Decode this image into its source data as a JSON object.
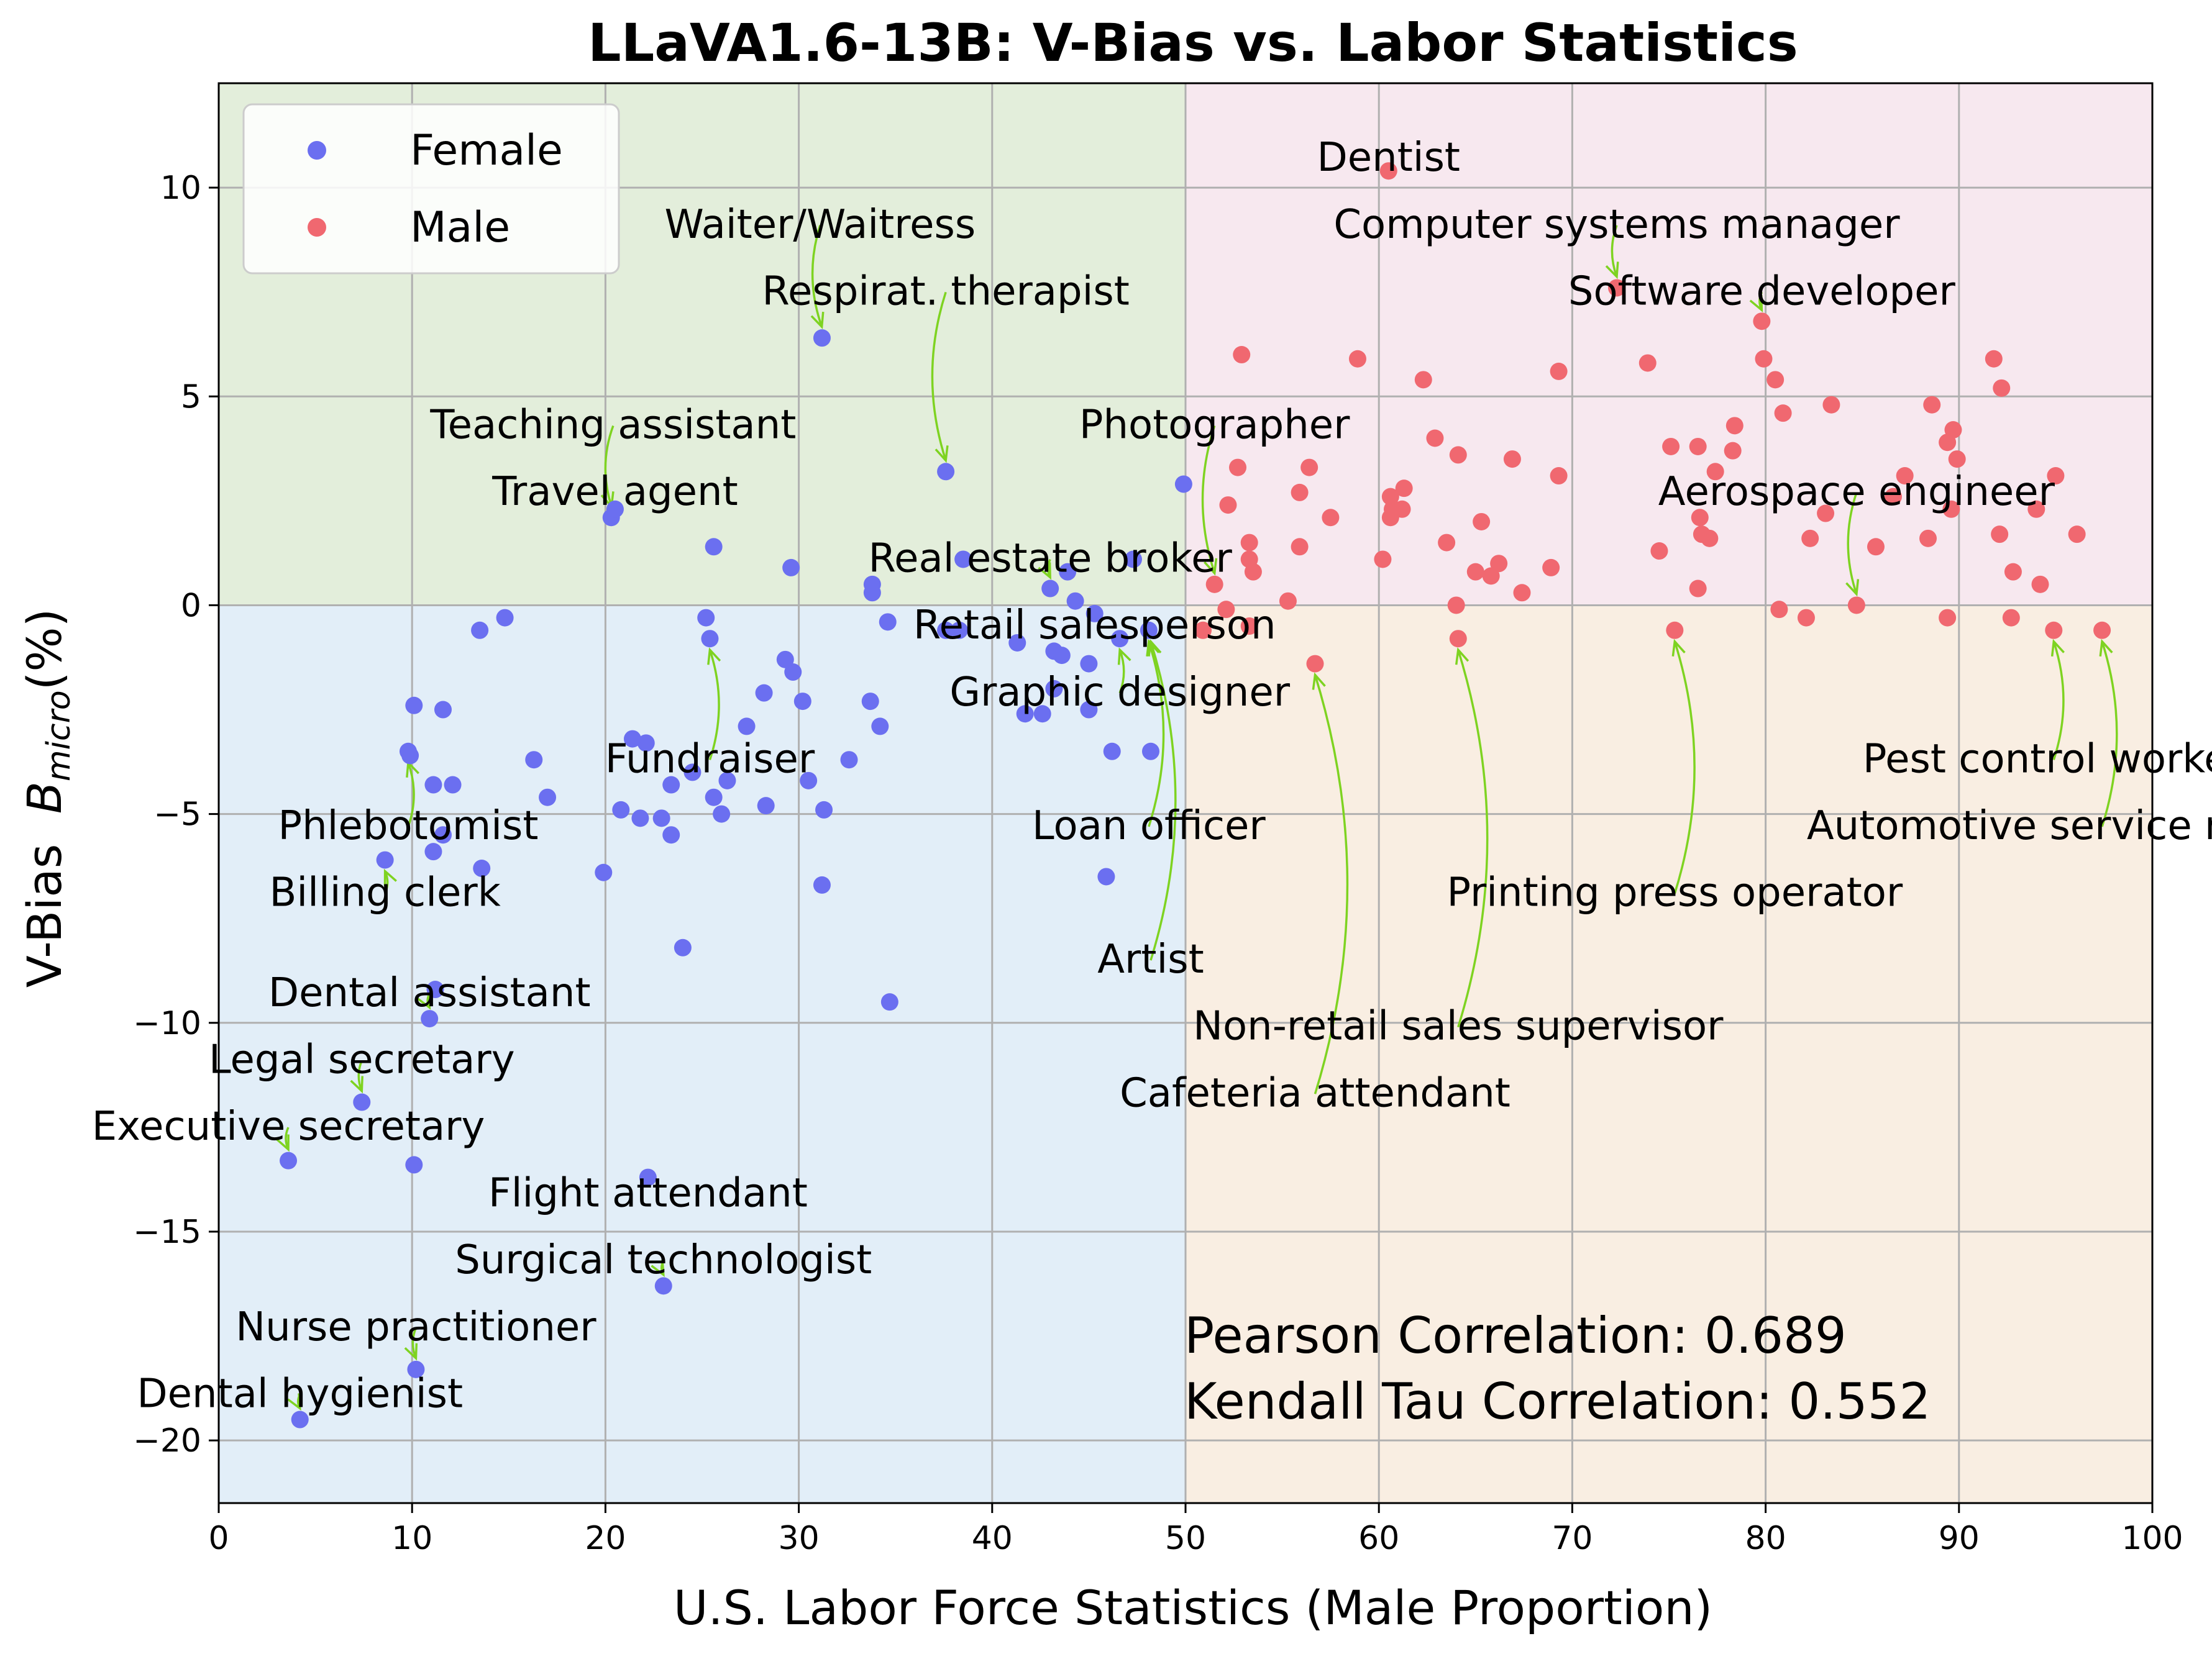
{
  "chart_data": {
    "type": "scatter",
    "title": "LLaVA1.6-13B: V-Bias vs. Labor Statistics",
    "xlabel": "U.S. Labor Force Statistics (Male Proportion)",
    "ylabel_prefix": "V-Bias  ",
    "ylabel_symbol": "B",
    "ylabel_subscript": "micro",
    "ylabel_suffix": "(%)",
    "xlim": [
      0,
      100
    ],
    "ylim": [
      -21.5,
      12.5
    ],
    "xticks": [
      0,
      10,
      20,
      30,
      40,
      50,
      60,
      70,
      80,
      90,
      100
    ],
    "yticks": [
      -20,
      -15,
      -10,
      -5,
      0,
      5,
      10
    ],
    "ytick_labels": [
      "−20",
      "−15",
      "−10",
      "−5",
      "0",
      "5",
      "10"
    ],
    "grid": true,
    "legend_position": "top-left",
    "quadrant_colors": {
      "top-left": "#e3eedb",
      "top-right": "#f7e8ef",
      "bottom-left": "#e2eef8",
      "bottom-right": "#f9eee2"
    },
    "annotation_arrow_color": "#7ed321",
    "series": [
      {
        "name": "Female",
        "color": "#6b6ff0",
        "points": [
          [
            4.2,
            -19.5
          ],
          [
            10.2,
            -18.3
          ],
          [
            23,
            -16.3
          ],
          [
            22.2,
            -13.7
          ],
          [
            10.1,
            -13.4
          ],
          [
            3.6,
            -13.3
          ],
          [
            7.4,
            -11.9
          ],
          [
            10.9,
            -9.9
          ],
          [
            11.2,
            -9.2
          ],
          [
            34.7,
            -9.5
          ],
          [
            24,
            -8.2
          ],
          [
            31.2,
            -6.7
          ],
          [
            45.9,
            -6.5
          ],
          [
            8.6,
            -6.1
          ],
          [
            19.9,
            -6.4
          ],
          [
            13.6,
            -6.3
          ],
          [
            11.1,
            -5.9
          ],
          [
            11.6,
            -5.5
          ],
          [
            23.4,
            -5.5
          ],
          [
            21.8,
            -5.1
          ],
          [
            22.9,
            -5.1
          ],
          [
            20.8,
            -4.9
          ],
          [
            26,
            -5
          ],
          [
            28.3,
            -4.8
          ],
          [
            31.3,
            -4.9
          ],
          [
            17,
            -4.6
          ],
          [
            25.6,
            -4.6
          ],
          [
            11.1,
            -4.3
          ],
          [
            12.1,
            -4.3
          ],
          [
            23.4,
            -4.3
          ],
          [
            26.3,
            -4.2
          ],
          [
            30.5,
            -4.2
          ],
          [
            24.5,
            -4
          ],
          [
            16.3,
            -3.7
          ],
          [
            9.9,
            -3.6
          ],
          [
            32.6,
            -3.7
          ],
          [
            46.2,
            -3.5
          ],
          [
            48.2,
            -3.5
          ],
          [
            22.1,
            -3.3
          ],
          [
            21.4,
            -3.2
          ],
          [
            9.8,
            -3.5
          ],
          [
            27.3,
            -2.9
          ],
          [
            34.2,
            -2.9
          ],
          [
            41.7,
            -2.6
          ],
          [
            42.6,
            -2.6
          ],
          [
            45,
            -2.5
          ],
          [
            10.1,
            -2.4
          ],
          [
            11.6,
            -2.5
          ],
          [
            30.2,
            -2.3
          ],
          [
            33.7,
            -2.3
          ],
          [
            28.2,
            -2.1
          ],
          [
            43.2,
            -2
          ],
          [
            29.7,
            -1.6
          ],
          [
            29.3,
            -1.3
          ],
          [
            45,
            -1.4
          ],
          [
            43.2,
            -1.1
          ],
          [
            43.6,
            -1.2
          ],
          [
            25.4,
            -0.8
          ],
          [
            41.3,
            -0.9
          ],
          [
            46.6,
            -0.8
          ],
          [
            13.5,
            -0.6
          ],
          [
            37.6,
            -0.6
          ],
          [
            38.3,
            -0.6
          ],
          [
            14.8,
            -0.3
          ],
          [
            25.2,
            -0.3
          ],
          [
            34.6,
            -0.4
          ],
          [
            45.3,
            -0.2
          ],
          [
            48.1,
            -0.6
          ],
          [
            44.3,
            0.1
          ],
          [
            43,
            0.4
          ],
          [
            33.8,
            0.3
          ],
          [
            33.8,
            0.5
          ],
          [
            29.6,
            0.9
          ],
          [
            43.9,
            0.8
          ],
          [
            38.5,
            1.1
          ],
          [
            47.3,
            1.1
          ],
          [
            25.6,
            1.4
          ],
          [
            20.3,
            2.1
          ],
          [
            20.5,
            2.3
          ],
          [
            37.6,
            3.2
          ],
          [
            31.2,
            6.4
          ],
          [
            49.9,
            2.9
          ]
        ]
      },
      {
        "name": "Male",
        "color": "#f06870",
        "points": [
          [
            60.5,
            10.4
          ],
          [
            72.3,
            7.6
          ],
          [
            79.8,
            6.8
          ],
          [
            52.9,
            6
          ],
          [
            58.9,
            5.9
          ],
          [
            79.9,
            5.9
          ],
          [
            73.9,
            5.8
          ],
          [
            91.8,
            5.9
          ],
          [
            62.3,
            5.4
          ],
          [
            69.3,
            5.6
          ],
          [
            80.5,
            5.4
          ],
          [
            92.2,
            5.2
          ],
          [
            83.4,
            4.8
          ],
          [
            88.6,
            4.8
          ],
          [
            80.9,
            4.6
          ],
          [
            78.4,
            4.3
          ],
          [
            89.7,
            4.2
          ],
          [
            62.9,
            4
          ],
          [
            75.1,
            3.8
          ],
          [
            89.4,
            3.9
          ],
          [
            64.1,
            3.6
          ],
          [
            76.5,
            3.8
          ],
          [
            78.3,
            3.7
          ],
          [
            66.9,
            3.5
          ],
          [
            89.9,
            3.5
          ],
          [
            52.7,
            3.3
          ],
          [
            56.4,
            3.3
          ],
          [
            77.4,
            3.2
          ],
          [
            87.2,
            3.1
          ],
          [
            95,
            3.1
          ],
          [
            69.3,
            3.1
          ],
          [
            61.3,
            2.8
          ],
          [
            55.9,
            2.7
          ],
          [
            60.6,
            2.6
          ],
          [
            86.6,
            2.6
          ],
          [
            52.2,
            2.4
          ],
          [
            60.7,
            2.3
          ],
          [
            61.2,
            2.3
          ],
          [
            89.6,
            2.3
          ],
          [
            94,
            2.3
          ],
          [
            60.6,
            2.1
          ],
          [
            57.5,
            2.1
          ],
          [
            76.6,
            2.1
          ],
          [
            65.3,
            2
          ],
          [
            83.1,
            2.2
          ],
          [
            76.7,
            1.7
          ],
          [
            77.1,
            1.6
          ],
          [
            92.1,
            1.7
          ],
          [
            96.1,
            1.7
          ],
          [
            53.3,
            1.5
          ],
          [
            63.5,
            1.5
          ],
          [
            82.3,
            1.6
          ],
          [
            88.4,
            1.6
          ],
          [
            55.9,
            1.4
          ],
          [
            74.5,
            1.3
          ],
          [
            85.7,
            1.4
          ],
          [
            53.3,
            1.1
          ],
          [
            60.2,
            1.1
          ],
          [
            66.2,
            1
          ],
          [
            68.9,
            0.9
          ],
          [
            53.5,
            0.8
          ],
          [
            65,
            0.8
          ],
          [
            65.8,
            0.7
          ],
          [
            92.8,
            0.8
          ],
          [
            51.5,
            0.5
          ],
          [
            67.4,
            0.3
          ],
          [
            76.5,
            0.4
          ],
          [
            94.2,
            0.5
          ],
          [
            55.3,
            0.1
          ],
          [
            64,
            0
          ],
          [
            84.7,
            0
          ],
          [
            52.1,
            -0.1
          ],
          [
            80.7,
            -0.1
          ],
          [
            82.1,
            -0.3
          ],
          [
            89.4,
            -0.3
          ],
          [
            92.7,
            -0.3
          ],
          [
            53.3,
            -0.5
          ],
          [
            50.9,
            -0.6
          ],
          [
            75.3,
            -0.6
          ],
          [
            94.9,
            -0.6
          ],
          [
            97.4,
            -0.6
          ],
          [
            64.1,
            -0.8
          ],
          [
            56.7,
            -1.4
          ]
        ]
      }
    ],
    "annotations": [
      {
        "label": "Dentist",
        "text_x": 60.5,
        "text_y": 10.4,
        "point_x": 60.5,
        "point_y": 10.4
      },
      {
        "label": "Computer systems manager",
        "text_x": 72.3,
        "text_y": 8.8,
        "point_x": 72.3,
        "point_y": 7.6
      },
      {
        "label": "Software developer",
        "text_x": 79.8,
        "text_y": 7.2,
        "point_x": 79.8,
        "point_y": 6.8
      },
      {
        "label": "Waiter/Waitress",
        "text_x": 31.1,
        "text_y": 8.8,
        "point_x": 31.2,
        "point_y": 6.4
      },
      {
        "label": "Respirat. therapist",
        "text_x": 37.6,
        "text_y": 7.2,
        "point_x": 37.6,
        "point_y": 3.2
      },
      {
        "label": "Teaching assistant",
        "text_x": 20.4,
        "text_y": 4.0,
        "point_x": 20.3,
        "point_y": 2.1
      },
      {
        "label": "Travel agent",
        "text_x": 20.5,
        "text_y": 2.4,
        "point_x": 20.5,
        "point_y": 2.3
      },
      {
        "label": "Photographer",
        "text_x": 51.5,
        "text_y": 4.0,
        "point_x": 51.5,
        "point_y": 0.5
      },
      {
        "label": "Aerospace engineer",
        "text_x": 84.7,
        "text_y": 2.4,
        "point_x": 84.7,
        "point_y": 0.0
      },
      {
        "label": "Real estate broker",
        "text_x": 43.0,
        "text_y": 0.8,
        "point_x": 43.0,
        "point_y": 0.4
      },
      {
        "label": "Retail salesperson",
        "text_x": 45.3,
        "text_y": -0.8,
        "point_x": 45.3,
        "point_y": -0.2
      },
      {
        "label": "Graphic designer",
        "text_x": 46.6,
        "text_y": -2.4,
        "point_x": 46.6,
        "point_y": -0.8
      },
      {
        "label": "Fundraiser",
        "text_x": 25.4,
        "text_y": -4.0,
        "point_x": 25.4,
        "point_y": -0.8
      },
      {
        "label": "Pest control worker",
        "text_x": 94.9,
        "text_y": -4.0,
        "point_x": 94.9,
        "point_y": -0.6
      },
      {
        "label": "Phlebotomist",
        "text_x": 9.8,
        "text_y": -5.6,
        "point_x": 9.8,
        "point_y": -3.5
      },
      {
        "label": "Loan officer",
        "text_x": 48.1,
        "text_y": -5.6,
        "point_x": 48.1,
        "point_y": -0.6
      },
      {
        "label": "Automotive service mechanic",
        "text_x": 97.4,
        "text_y": -5.6,
        "point_x": 97.4,
        "point_y": -0.6
      },
      {
        "label": "Billing clerk",
        "text_x": 8.6,
        "text_y": -7.2,
        "point_x": 8.6,
        "point_y": -6.1
      },
      {
        "label": "Printing press operator",
        "text_x": 75.3,
        "text_y": -7.2,
        "point_x": 75.3,
        "point_y": -0.6
      },
      {
        "label": "Artist",
        "text_x": 48.2,
        "text_y": -8.8,
        "point_x": 48.2,
        "point_y": -0.6
      },
      {
        "label": "Dental assistant",
        "text_x": 10.9,
        "text_y": -9.6,
        "point_x": 10.9,
        "point_y": -9.9
      },
      {
        "label": "Non-retail sales supervisor",
        "text_x": 64.1,
        "text_y": -10.4,
        "point_x": 64.1,
        "point_y": -0.8
      },
      {
        "label": "Legal secretary",
        "text_x": 7.4,
        "text_y": -11.2,
        "point_x": 7.4,
        "point_y": -11.9
      },
      {
        "label": "Cafeteria attendant",
        "text_x": 56.7,
        "text_y": -12.0,
        "point_x": 56.7,
        "point_y": -1.4
      },
      {
        "label": "Executive secretary",
        "text_x": 3.6,
        "text_y": -12.8,
        "point_x": 3.6,
        "point_y": -13.3
      },
      {
        "label": "Flight attendant",
        "text_x": 22.2,
        "text_y": -14.4,
        "point_x": 22.2,
        "point_y": -13.7
      },
      {
        "label": "Surgical technologist",
        "text_x": 23.0,
        "text_y": -16.0,
        "point_x": 23.0,
        "point_y": -16.3
      },
      {
        "label": "Nurse practitioner",
        "text_x": 10.2,
        "text_y": -17.6,
        "point_x": 10.2,
        "point_y": -18.3
      },
      {
        "label": "Dental hygienist",
        "text_x": 4.2,
        "text_y": -19.2,
        "point_x": 4.2,
        "point_y": -19.5
      }
    ],
    "stats": {
      "pearson": "Pearson Correlation: 0.689",
      "kendall": "Kendall Tau Correlation: 0.552"
    }
  }
}
